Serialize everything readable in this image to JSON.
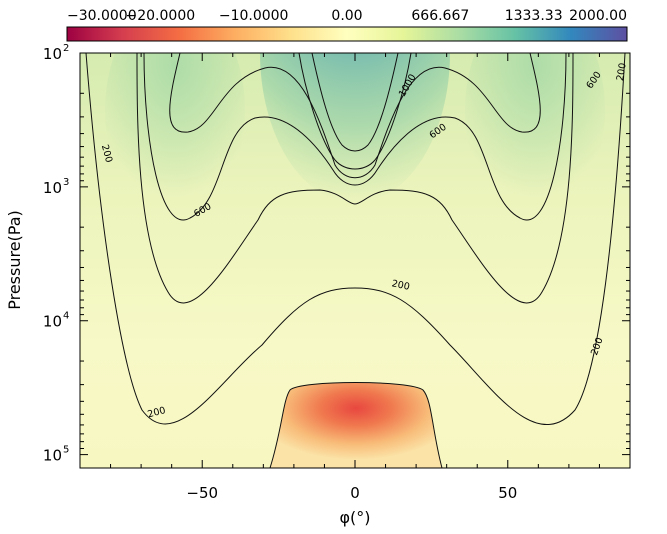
{
  "chart_data": {
    "type": "heatmap",
    "title": "",
    "xlabel": "φ(°)",
    "ylabel": "Pressure(Pa)",
    "xlim": [
      -90,
      90
    ],
    "ylim_log10": [
      2,
      5.1
    ],
    "y_scale": "log",
    "x_ticks": [
      {
        "value": -50,
        "label": "−50"
      },
      {
        "value": 0,
        "label": "0"
      },
      {
        "value": 50,
        "label": "50"
      }
    ],
    "y_ticks": [
      {
        "value": 100,
        "base": "10",
        "exp": "2"
      },
      {
        "value": 1000,
        "base": "10",
        "exp": "3"
      },
      {
        "value": 10000,
        "base": "10",
        "exp": "4"
      },
      {
        "value": 100000,
        "base": "10",
        "exp": "5"
      }
    ],
    "colorbar": {
      "labels": [
        "−30.0000",
        "−20.0000",
        "−10.0000",
        "0.00",
        "666.667",
        "1333.33",
        "2000.00"
      ],
      "colors": [
        "#9e0142",
        "#d53e4f",
        "#f46d43",
        "#fdae61",
        "#fee08b",
        "#ffffbf",
        "#e6f598",
        "#abdda4",
        "#66c2a5",
        "#3288bd",
        "#5e4fa2"
      ]
    },
    "contours": [
      {
        "level": 200,
        "label": "200"
      },
      {
        "level": 600,
        "label": "600"
      },
      {
        "level": 1000,
        "label": "1000"
      }
    ],
    "contour_labels": [
      {
        "text": "200",
        "lon": -81,
        "logp": 2.75,
        "angle": 75
      },
      {
        "text": "200",
        "lon": 87,
        "logp": 2.14,
        "angle": -80
      },
      {
        "text": "200",
        "lon": 79,
        "logp": 4.19,
        "angle": -70
      },
      {
        "text": "200",
        "lon": 15,
        "logp": 3.73,
        "angle": 12
      },
      {
        "text": "200",
        "lon": -65,
        "logp": 4.68,
        "angle": -15
      },
      {
        "text": "600",
        "lon": -50,
        "logp": 3.17,
        "angle": -30
      },
      {
        "text": "600",
        "lon": 27,
        "logp": 2.58,
        "angle": -35
      },
      {
        "text": "600",
        "lon": 78,
        "logp": 2.2,
        "angle": -55
      },
      {
        "text": "1000",
        "lon": 17,
        "logp": 2.24,
        "angle": -60
      }
    ]
  }
}
